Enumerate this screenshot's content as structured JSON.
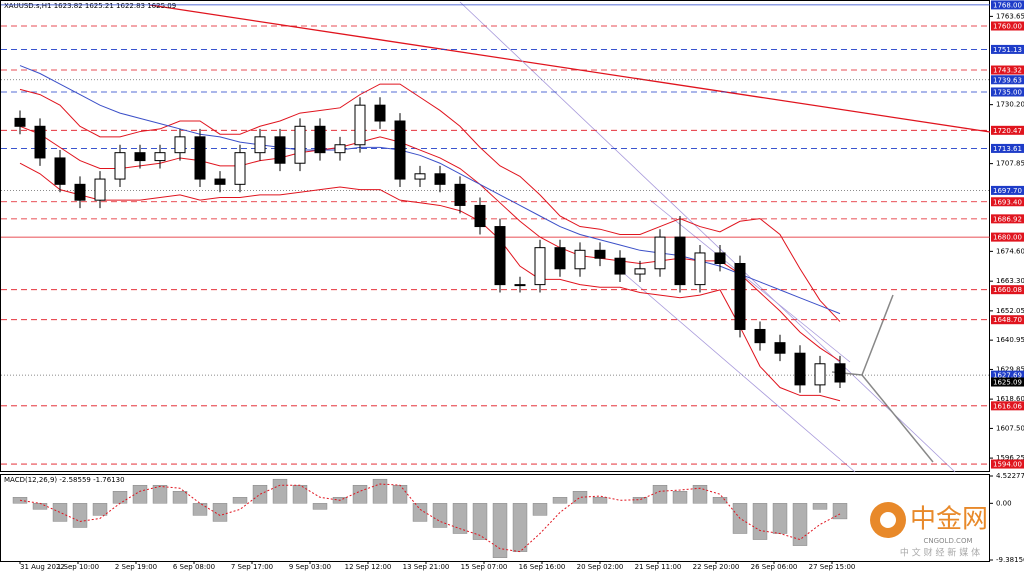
{
  "chart_data": {
    "type": "candlestick",
    "title": "XAUUSD.s,H1  1623.82 1625.21 1622.83 1625.09",
    "ylim": [
      1592.5,
      1769.1
    ],
    "yticks": [
      1763.65,
      {
        "value": 1730.2,
        "label": "1730.20"
      },
      1707.85,
      {
        "value": 1674.6,
        "label": "1674.60"
      },
      {
        "value": 1663.3,
        "label": "1663.30"
      },
      1652.05,
      1640.95,
      1629.85,
      {
        "value": 1618.6,
        "label": "1618.60"
      },
      {
        "value": 1607.5,
        "label": "1607.50"
      },
      1596.25
    ],
    "x_labels": [
      "31 Aug 2022",
      "1 Sep 10:00",
      "2 Sep 19:00",
      "6 Sep 08:00",
      "7 Sep 17:00",
      "9 Sep 03:00",
      "12 Sep 12:00",
      "13 Sep 21:00",
      "15 Sep 07:00",
      "16 Sep 16:00",
      "20 Sep 02:00",
      "21 Sep 11:00",
      "22 Sep 20:00",
      "26 Sep 06:00",
      "27 Sep 15:00"
    ],
    "open": [
      1725,
      1722,
      1710,
      1700,
      1694,
      1702,
      1712,
      1709,
      1712,
      1718,
      1702,
      1700,
      1712,
      1718,
      1708,
      1722,
      1712,
      1715,
      1730,
      1724,
      1702,
      1704,
      1700,
      1692,
      1684,
      1662,
      1662,
      1676,
      1668,
      1675,
      1672,
      1666,
      1668,
      1680,
      1662,
      1674,
      1670,
      1645,
      1640,
      1636,
      1624,
      1632
    ],
    "high": [
      1728,
      1725,
      1713,
      1703,
      1705,
      1715,
      1715,
      1715,
      1721,
      1721,
      1705,
      1715,
      1721,
      1721,
      1725,
      1725,
      1718,
      1733,
      1733,
      1727,
      1707,
      1707,
      1703,
      1695,
      1687,
      1665,
      1679,
      1679,
      1678,
      1678,
      1675,
      1671,
      1683,
      1688,
      1677,
      1677,
      1673,
      1648,
      1643,
      1639,
      1635,
      1635
    ],
    "low": [
      1719,
      1707,
      1697,
      1691,
      1691,
      1699,
      1706,
      1706,
      1709,
      1699,
      1697,
      1697,
      1709,
      1705,
      1705,
      1709,
      1709,
      1712,
      1721,
      1699,
      1699,
      1697,
      1689,
      1681,
      1659,
      1659,
      1659,
      1665,
      1665,
      1669,
      1663,
      1663,
      1665,
      1659,
      1659,
      1667,
      1642,
      1637,
      1633,
      1621,
      1621,
      1622.83
    ],
    "close": [
      1722,
      1710,
      1700,
      1694,
      1702,
      1712,
      1709,
      1712,
      1718,
      1702,
      1700,
      1712,
      1718,
      1708,
      1722,
      1712,
      1715,
      1730,
      1724,
      1702,
      1704,
      1700,
      1692,
      1684,
      1662,
      1662,
      1676,
      1668,
      1675,
      1672,
      1666,
      1668,
      1680,
      1662,
      1674,
      1670,
      1645,
      1640,
      1636,
      1624,
      1632,
      1625.09
    ],
    "overlays": [
      {
        "color": "#e0141e",
        "values": [
          1736,
          1734,
          1730,
          1722,
          1718,
          1718,
          1720,
          1721,
          1724,
          1724,
          1719,
          1719,
          1722,
          1724,
          1727,
          1728,
          1729,
          1734,
          1738,
          1738,
          1733,
          1728,
          1722,
          1714,
          1707,
          1703,
          1696,
          1688,
          1684,
          1683,
          1681,
          1681,
          1684,
          1687,
          1684,
          1682,
          1686,
          1687,
          1681,
          1668,
          1656,
          1648
        ]
      },
      {
        "color": "#e0141e",
        "values": [
          1722,
          1719,
          1714,
          1709,
          1706,
          1706,
          1707,
          1708,
          1710,
          1709,
          1707,
          1707,
          1709,
          1710,
          1712,
          1713,
          1714,
          1716,
          1718,
          1716,
          1713,
          1710,
          1706,
          1700,
          1693,
          1686,
          1680,
          1676,
          1673,
          1672,
          1671,
          1670,
          1671,
          1672,
          1671,
          1671,
          1666,
          1659,
          1652,
          1644,
          1638,
          1633
        ]
      },
      {
        "color": "#e0141e",
        "values": [
          1708,
          1704,
          1698,
          1696,
          1694,
          1694,
          1694,
          1695,
          1696,
          1694,
          1695,
          1695,
          1696,
          1696,
          1697,
          1698,
          1699,
          1698,
          1698,
          1694,
          1693,
          1692,
          1690,
          1686,
          1679,
          1669,
          1664,
          1664,
          1662,
          1661,
          1661,
          1659,
          1658,
          1657,
          1658,
          1660,
          1646,
          1631,
          1623,
          1620,
          1620,
          1618
        ]
      },
      {
        "color": "#3c50c8",
        "values": [
          1745,
          1742,
          1738,
          1734,
          1730,
          1727,
          1725,
          1723,
          1721,
          1719,
          1718,
          1716,
          1715,
          1714,
          1713,
          1713,
          1713,
          1714,
          1714,
          1713,
          1711,
          1708,
          1704,
          1700,
          1696,
          1692,
          1688,
          1684,
          1681,
          1679,
          1677,
          1675,
          1674,
          1673,
          1671,
          1669,
          1666,
          1663,
          1660,
          1657,
          1654,
          1651
        ]
      }
    ],
    "levels": [
      {
        "value": 1768,
        "label": "1768.00",
        "color": "#1e3cc8",
        "style": "solid"
      },
      {
        "value": 1760,
        "label": "1760.00",
        "color": "#e0141e",
        "style": "dashed"
      },
      {
        "value": 1751.13,
        "label": "1751.13",
        "color": "#1e3cc8",
        "style": "dashed"
      },
      {
        "value": 1743.32,
        "label": "1743.32",
        "color": "#e0141e",
        "style": "dashed"
      },
      {
        "value": 1739.63,
        "label": "1739.63",
        "color": "#1e3cc8",
        "style": "dotted"
      },
      {
        "value": 1735,
        "label": "1735.00",
        "color": "#1e3cc8",
        "style": "dashed"
      },
      {
        "value": 1720.47,
        "label": "1720.47",
        "color": "#e0141e",
        "style": "dashed"
      },
      {
        "value": 1713.61,
        "label": "1713.61",
        "color": "#1e3cc8",
        "style": "dashed"
      },
      {
        "value": 1697.7,
        "label": "1697.70",
        "color": "#1e3cc8",
        "style": "dotted"
      },
      {
        "value": 1693.4,
        "label": "1693.40",
        "color": "#e0141e",
        "style": "dashed"
      },
      {
        "value": 1686.92,
        "label": "1686.92",
        "color": "#e0141e",
        "style": "dashed"
      },
      {
        "value": 1680,
        "label": "1680.00",
        "color": "#e0141e",
        "style": "solid"
      },
      {
        "value": 1660.08,
        "label": "1660.08",
        "color": "#e0141e",
        "style": "dashed"
      },
      {
        "value": 1648.7,
        "label": "1648.70",
        "color": "#e0141e",
        "style": "dashed"
      },
      {
        "value": 1627.69,
        "label": "1627.69",
        "color": "#1e3cc8",
        "style": "dotted"
      },
      {
        "value": 1625.09,
        "label": "1625.09",
        "color": "#000000",
        "style": "none"
      },
      {
        "value": 1616.06,
        "label": "1616.06",
        "color": "#e0141e",
        "style": "dashed"
      },
      {
        "value": 1594,
        "label": "1594.00",
        "color": "#e0141e",
        "style": "dashed"
      }
    ],
    "macd": {
      "title": "MACD(12,26,9) -2.58559 -1.76130",
      "ylim": [
        -9.38156,
        4.52277
      ],
      "yticks": [
        4.52277,
        {
          "value": 0,
          "label": "0.00"
        },
        -9.38156
      ],
      "histogram": [
        1,
        -1,
        -3,
        -4,
        -2,
        2,
        3,
        3,
        2,
        -2,
        -3,
        1,
        3,
        4,
        3,
        -1,
        1,
        3,
        4,
        3,
        -3,
        -4,
        -5,
        -6,
        -9,
        -8,
        -2,
        1,
        2,
        1,
        0,
        1,
        3,
        2,
        3,
        1,
        -5,
        -6,
        -5,
        -7,
        -1,
        -2.58559
      ],
      "signal": [
        0.5,
        0,
        -1.5,
        -3,
        -2.5,
        0,
        2,
        2.8,
        2.5,
        0,
        -2,
        -1,
        1.5,
        3,
        3,
        1,
        0.5,
        2,
        3.2,
        3,
        -1,
        -3,
        -4.2,
        -5.3,
        -7.5,
        -8,
        -5,
        -1.5,
        1,
        1.2,
        0.5,
        0.6,
        2,
        2.2,
        2.5,
        1.5,
        -2.5,
        -4.5,
        -5,
        -6,
        -3.5,
        -1.7613
      ]
    },
    "watermark": {
      "logo": "中金网",
      "site": "CNGOLD.COM",
      "tagline": "中 文 财 经 新 媒 体"
    }
  }
}
